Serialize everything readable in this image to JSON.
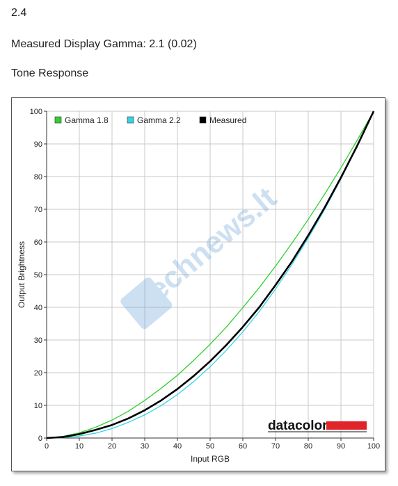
{
  "header": {
    "version": "2.4",
    "gamma_text": "Measured Display Gamma: 2.1 (0.02)",
    "section_title": "Tone Response"
  },
  "brand": {
    "logo_text": "datacolor",
    "logo_bar_color": "#e0242a",
    "watermark_text": "technews.lt"
  },
  "chart_data": {
    "type": "line",
    "xlabel": "Input RGB",
    "ylabel": "Output Brightness",
    "xlim": [
      0,
      100
    ],
    "ylim": [
      0,
      100
    ],
    "x_ticks": [
      0,
      10,
      20,
      30,
      40,
      50,
      60,
      70,
      80,
      90,
      100
    ],
    "y_ticks": [
      0,
      10,
      20,
      30,
      40,
      50,
      60,
      70,
      80,
      90,
      100
    ],
    "grid": true,
    "legend_position": "top-left",
    "x": [
      0,
      5,
      10,
      15,
      20,
      25,
      30,
      35,
      40,
      45,
      50,
      55,
      60,
      65,
      70,
      75,
      80,
      85,
      90,
      95,
      100
    ],
    "series": [
      {
        "name": "Gamma 1.8",
        "color": "#2fd02f",
        "values": [
          0,
          0.5,
          1.6,
          3.3,
          5.5,
          8.2,
          11.5,
          15.2,
          19.2,
          23.8,
          28.7,
          34.0,
          39.9,
          46.0,
          52.6,
          59.6,
          66.9,
          74.6,
          82.7,
          91.2,
          100
        ]
      },
      {
        "name": "Gamma 2.2",
        "color": "#33d4e6",
        "values": [
          0,
          0.1,
          0.6,
          1.5,
          2.9,
          4.8,
          7.1,
          9.9,
          13.3,
          17.3,
          21.8,
          26.9,
          32.5,
          38.7,
          45.6,
          53.1,
          61.2,
          69.9,
          79.3,
          89.3,
          100
        ]
      },
      {
        "name": "Measured",
        "color": "#000000",
        "values": [
          0,
          0.3,
          1.2,
          2.5,
          4.0,
          6.0,
          8.5,
          11.5,
          15.0,
          19.0,
          23.5,
          28.5,
          34.0,
          40.0,
          46.8,
          54.0,
          62.0,
          70.5,
          79.7,
          89.5,
          100
        ]
      }
    ]
  }
}
